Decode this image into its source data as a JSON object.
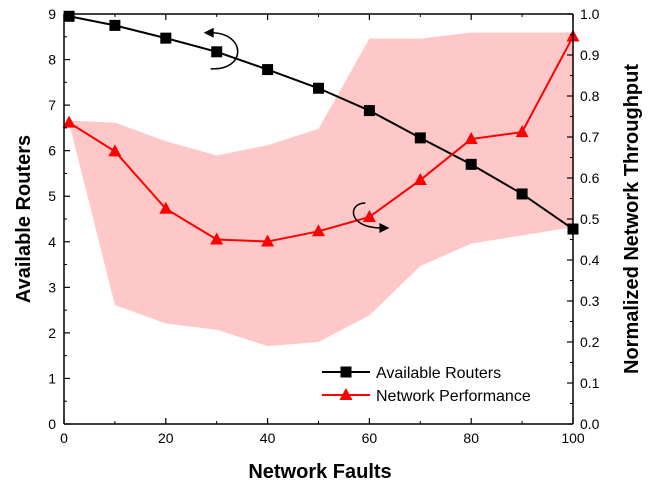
{
  "chart_data": {
    "type": "line",
    "title": "",
    "xlabel": "Network Faults",
    "ylabel_left": "Available Routers",
    "ylabel_right": "Normalized Network Throughput",
    "xlim": [
      0,
      100
    ],
    "ylim_left": [
      0,
      9
    ],
    "ylim_right": [
      0,
      1.0
    ],
    "x_ticks": [
      0,
      20,
      40,
      60,
      80,
      100
    ],
    "y_left_ticks": [
      0,
      1,
      2,
      3,
      4,
      5,
      6,
      7,
      8,
      9
    ],
    "y_right_ticks": [
      "0.0",
      "0.1",
      "0.2",
      "0.3",
      "0.4",
      "0.5",
      "0.6",
      "0.7",
      "0.8",
      "0.9",
      "1.0"
    ],
    "grid": false,
    "legend_position": "bottom-right",
    "series": [
      {
        "name": "Available Routers",
        "axis": "left",
        "color": "#000000",
        "marker": "square",
        "x": [
          1,
          10,
          20,
          30,
          40,
          50,
          60,
          70,
          80,
          90,
          100
        ],
        "y": [
          8.95,
          8.75,
          8.47,
          8.17,
          7.78,
          7.37,
          6.88,
          6.28,
          5.7,
          5.05,
          4.28
        ]
      },
      {
        "name": "Network Performance",
        "axis": "right",
        "color": "#ff0000",
        "marker": "triangle",
        "x": [
          1,
          10,
          20,
          30,
          40,
          50,
          60,
          70,
          80,
          90,
          100
        ],
        "y": [
          0.735,
          0.665,
          0.525,
          0.45,
          0.445,
          0.47,
          0.505,
          0.595,
          0.695,
          0.712,
          0.945
        ]
      }
    ],
    "band": {
      "axis": "right",
      "color": "#ffc8c8",
      "x": [
        1,
        10,
        20,
        30,
        40,
        50,
        60,
        70,
        80,
        90,
        100
      ],
      "upper": [
        0.74,
        0.735,
        0.69,
        0.655,
        0.68,
        0.72,
        0.94,
        0.94,
        0.955,
        0.955,
        0.955
      ],
      "lower": [
        0.735,
        0.29,
        0.245,
        0.23,
        0.19,
        0.2,
        0.265,
        0.385,
        0.44,
        0.46,
        0.48
      ]
    }
  }
}
